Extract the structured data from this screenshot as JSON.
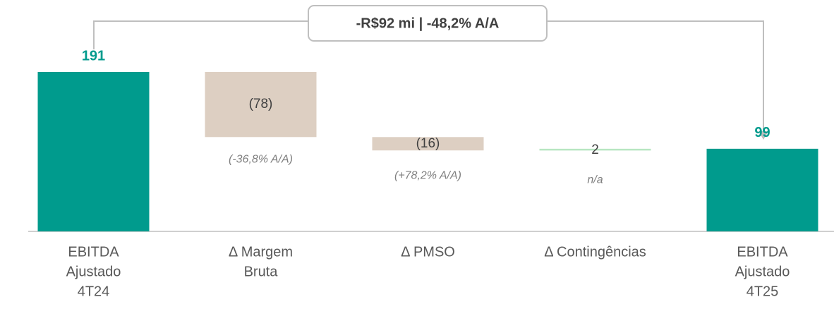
{
  "chart_data": {
    "type": "waterfall",
    "annotation": "-R$92 mi | -48,2% A/A",
    "categories": [
      [
        "EBITDA",
        "Ajustado",
        "4T24"
      ],
      [
        "Δ Margem",
        "Bruta"
      ],
      [
        "Δ PMSO"
      ],
      [
        "Δ Contingências"
      ],
      [
        "EBITDA",
        "Ajustado",
        "4T25"
      ]
    ],
    "values": [
      191,
      -78,
      -16,
      2,
      99
    ],
    "value_labels": [
      "191",
      "(78)",
      "(16)",
      "2",
      "99"
    ],
    "kinds": [
      "total",
      "delta",
      "delta",
      "delta",
      "total"
    ],
    "notes": [
      null,
      "(-36,8% A/A)",
      "(+78,2% A/A)",
      "n/a",
      null
    ],
    "colors": {
      "total": "#009b8d",
      "negative": "#ddcfc2",
      "positive": "#b8e6c2"
    }
  }
}
